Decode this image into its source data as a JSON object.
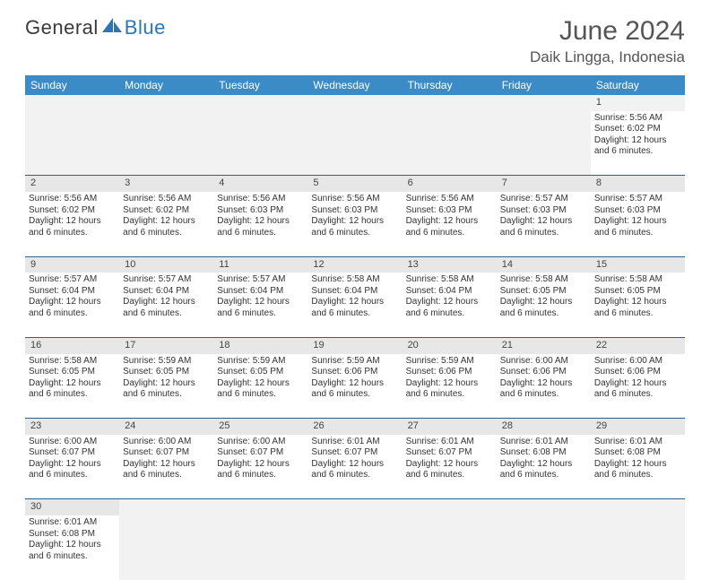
{
  "brand": {
    "part1": "General",
    "part2": "Blue"
  },
  "title": "June 2024",
  "location": "Daik Lingga, Indonesia",
  "colors": {
    "header_bg": "#3b8bc7",
    "header_text": "#ffffff",
    "daynum_bg": "#e7e7e7",
    "cell_border": "#2e5f8f",
    "brand_blue": "#2e75b6",
    "title_color": "#555555"
  },
  "weekdays": [
    "Sunday",
    "Monday",
    "Tuesday",
    "Wednesday",
    "Thursday",
    "Friday",
    "Saturday"
  ],
  "weeks": [
    [
      null,
      null,
      null,
      null,
      null,
      null,
      {
        "n": "1",
        "sr": "Sunrise: 5:56 AM",
        "ss": "Sunset: 6:02 PM",
        "d1": "Daylight: 12 hours",
        "d2": "and 6 minutes."
      }
    ],
    [
      {
        "n": "2",
        "sr": "Sunrise: 5:56 AM",
        "ss": "Sunset: 6:02 PM",
        "d1": "Daylight: 12 hours",
        "d2": "and 6 minutes."
      },
      {
        "n": "3",
        "sr": "Sunrise: 5:56 AM",
        "ss": "Sunset: 6:02 PM",
        "d1": "Daylight: 12 hours",
        "d2": "and 6 minutes."
      },
      {
        "n": "4",
        "sr": "Sunrise: 5:56 AM",
        "ss": "Sunset: 6:03 PM",
        "d1": "Daylight: 12 hours",
        "d2": "and 6 minutes."
      },
      {
        "n": "5",
        "sr": "Sunrise: 5:56 AM",
        "ss": "Sunset: 6:03 PM",
        "d1": "Daylight: 12 hours",
        "d2": "and 6 minutes."
      },
      {
        "n": "6",
        "sr": "Sunrise: 5:56 AM",
        "ss": "Sunset: 6:03 PM",
        "d1": "Daylight: 12 hours",
        "d2": "and 6 minutes."
      },
      {
        "n": "7",
        "sr": "Sunrise: 5:57 AM",
        "ss": "Sunset: 6:03 PM",
        "d1": "Daylight: 12 hours",
        "d2": "and 6 minutes."
      },
      {
        "n": "8",
        "sr": "Sunrise: 5:57 AM",
        "ss": "Sunset: 6:03 PM",
        "d1": "Daylight: 12 hours",
        "d2": "and 6 minutes."
      }
    ],
    [
      {
        "n": "9",
        "sr": "Sunrise: 5:57 AM",
        "ss": "Sunset: 6:04 PM",
        "d1": "Daylight: 12 hours",
        "d2": "and 6 minutes."
      },
      {
        "n": "10",
        "sr": "Sunrise: 5:57 AM",
        "ss": "Sunset: 6:04 PM",
        "d1": "Daylight: 12 hours",
        "d2": "and 6 minutes."
      },
      {
        "n": "11",
        "sr": "Sunrise: 5:57 AM",
        "ss": "Sunset: 6:04 PM",
        "d1": "Daylight: 12 hours",
        "d2": "and 6 minutes."
      },
      {
        "n": "12",
        "sr": "Sunrise: 5:58 AM",
        "ss": "Sunset: 6:04 PM",
        "d1": "Daylight: 12 hours",
        "d2": "and 6 minutes."
      },
      {
        "n": "13",
        "sr": "Sunrise: 5:58 AM",
        "ss": "Sunset: 6:04 PM",
        "d1": "Daylight: 12 hours",
        "d2": "and 6 minutes."
      },
      {
        "n": "14",
        "sr": "Sunrise: 5:58 AM",
        "ss": "Sunset: 6:05 PM",
        "d1": "Daylight: 12 hours",
        "d2": "and 6 minutes."
      },
      {
        "n": "15",
        "sr": "Sunrise: 5:58 AM",
        "ss": "Sunset: 6:05 PM",
        "d1": "Daylight: 12 hours",
        "d2": "and 6 minutes."
      }
    ],
    [
      {
        "n": "16",
        "sr": "Sunrise: 5:58 AM",
        "ss": "Sunset: 6:05 PM",
        "d1": "Daylight: 12 hours",
        "d2": "and 6 minutes."
      },
      {
        "n": "17",
        "sr": "Sunrise: 5:59 AM",
        "ss": "Sunset: 6:05 PM",
        "d1": "Daylight: 12 hours",
        "d2": "and 6 minutes."
      },
      {
        "n": "18",
        "sr": "Sunrise: 5:59 AM",
        "ss": "Sunset: 6:05 PM",
        "d1": "Daylight: 12 hours",
        "d2": "and 6 minutes."
      },
      {
        "n": "19",
        "sr": "Sunrise: 5:59 AM",
        "ss": "Sunset: 6:06 PM",
        "d1": "Daylight: 12 hours",
        "d2": "and 6 minutes."
      },
      {
        "n": "20",
        "sr": "Sunrise: 5:59 AM",
        "ss": "Sunset: 6:06 PM",
        "d1": "Daylight: 12 hours",
        "d2": "and 6 minutes."
      },
      {
        "n": "21",
        "sr": "Sunrise: 6:00 AM",
        "ss": "Sunset: 6:06 PM",
        "d1": "Daylight: 12 hours",
        "d2": "and 6 minutes."
      },
      {
        "n": "22",
        "sr": "Sunrise: 6:00 AM",
        "ss": "Sunset: 6:06 PM",
        "d1": "Daylight: 12 hours",
        "d2": "and 6 minutes."
      }
    ],
    [
      {
        "n": "23",
        "sr": "Sunrise: 6:00 AM",
        "ss": "Sunset: 6:07 PM",
        "d1": "Daylight: 12 hours",
        "d2": "and 6 minutes."
      },
      {
        "n": "24",
        "sr": "Sunrise: 6:00 AM",
        "ss": "Sunset: 6:07 PM",
        "d1": "Daylight: 12 hours",
        "d2": "and 6 minutes."
      },
      {
        "n": "25",
        "sr": "Sunrise: 6:00 AM",
        "ss": "Sunset: 6:07 PM",
        "d1": "Daylight: 12 hours",
        "d2": "and 6 minutes."
      },
      {
        "n": "26",
        "sr": "Sunrise: 6:01 AM",
        "ss": "Sunset: 6:07 PM",
        "d1": "Daylight: 12 hours",
        "d2": "and 6 minutes."
      },
      {
        "n": "27",
        "sr": "Sunrise: 6:01 AM",
        "ss": "Sunset: 6:07 PM",
        "d1": "Daylight: 12 hours",
        "d2": "and 6 minutes."
      },
      {
        "n": "28",
        "sr": "Sunrise: 6:01 AM",
        "ss": "Sunset: 6:08 PM",
        "d1": "Daylight: 12 hours",
        "d2": "and 6 minutes."
      },
      {
        "n": "29",
        "sr": "Sunrise: 6:01 AM",
        "ss": "Sunset: 6:08 PM",
        "d1": "Daylight: 12 hours",
        "d2": "and 6 minutes."
      }
    ],
    [
      {
        "n": "30",
        "sr": "Sunrise: 6:01 AM",
        "ss": "Sunset: 6:08 PM",
        "d1": "Daylight: 12 hours",
        "d2": "and 6 minutes."
      },
      null,
      null,
      null,
      null,
      null,
      null
    ]
  ]
}
